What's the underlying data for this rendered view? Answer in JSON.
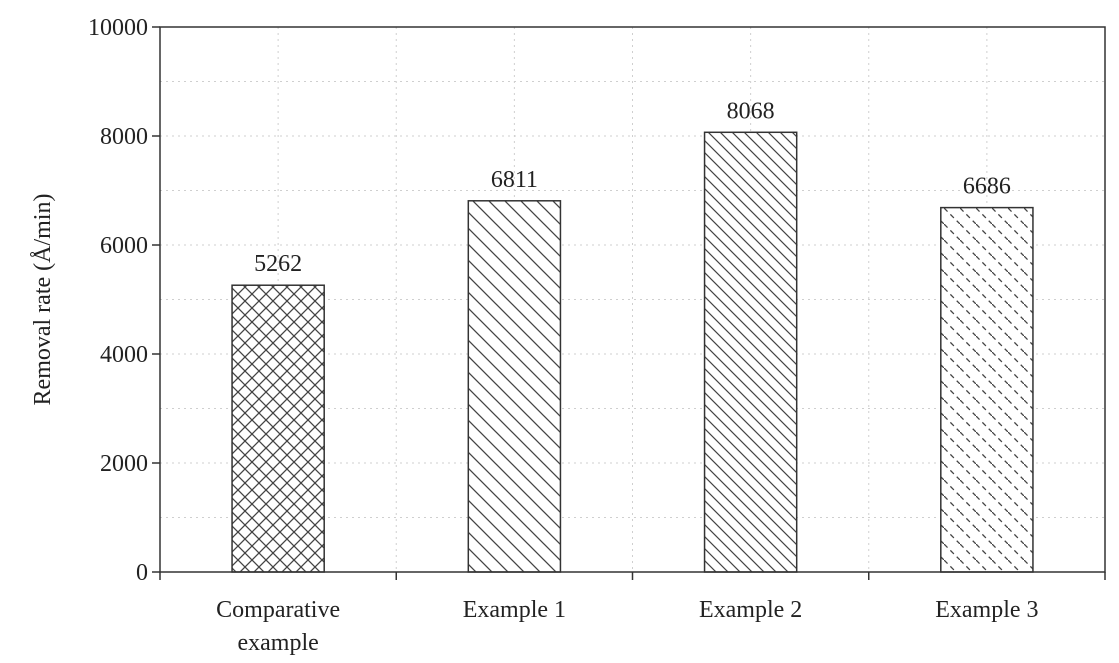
{
  "chart_data": {
    "type": "bar",
    "title": "",
    "xlabel": "",
    "ylabel": "Removal rate (Å/min)",
    "ylim": [
      0,
      10000
    ],
    "yticks": [
      0,
      2000,
      4000,
      6000,
      8000,
      10000
    ],
    "grid": true,
    "categories": [
      [
        "Comparative",
        "example"
      ],
      [
        "Example 1"
      ],
      [
        "Example 2"
      ],
      [
        "Example 3"
      ]
    ],
    "values": [
      5262,
      6811,
      8068,
      6686
    ],
    "data_labels": [
      "5262",
      "6811",
      "8068",
      "6686"
    ],
    "patterns": [
      "crosshatch",
      "diagonal-back",
      "diagonal-back-dense",
      "diagonal-back-dashed"
    ],
    "colors": {
      "bar_fill": "#ffffff",
      "bar_stroke": "#333333",
      "hatch": "#444444",
      "grid": "#cfcfcf"
    }
  }
}
